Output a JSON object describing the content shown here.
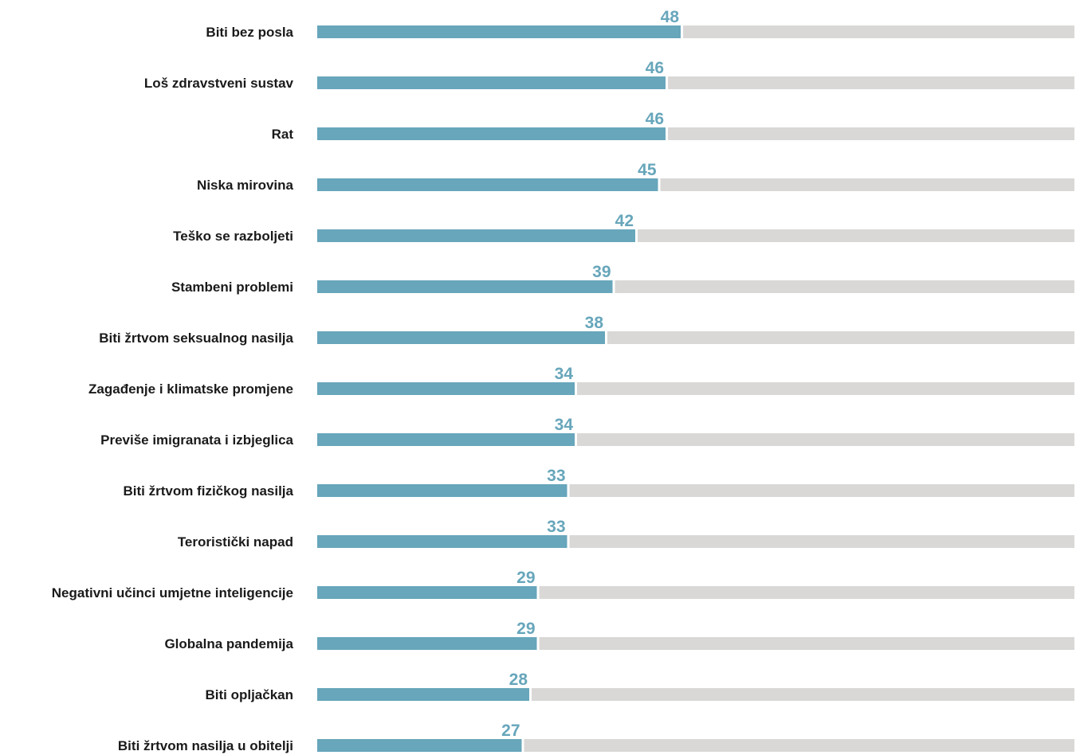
{
  "chart_data": {
    "type": "bar",
    "orientation": "horizontal",
    "stacked_to_total": 100,
    "categories": [
      "Biti bez posla",
      "Loš zdravstveni sustav",
      "Rat",
      "Niska mirovina",
      "Teško se razboljeti",
      "Stambeni problemi",
      "Biti žrtvom seksualnog nasilja",
      "Zagađenje i klimatske promjene",
      "Previše imigranata i izbjeglica",
      "Biti žrtvom fizičkog nasilja",
      "Teroristički napad",
      "Negativni učinci umjetne inteligencije",
      "Globalna pandemija",
      "Biti opljačkan",
      "Biti žrtvom nasilja u obitelji"
    ],
    "values": [
      48,
      46,
      46,
      45,
      42,
      39,
      38,
      34,
      34,
      33,
      33,
      29,
      29,
      28,
      27
    ],
    "xlim": [
      0,
      100
    ],
    "title": "",
    "xlabel": "",
    "ylabel": "",
    "grid": false,
    "legend": "none",
    "colors": {
      "bar": "#67a6bb",
      "remainder": "#d9d8d6",
      "value_label": "#67a6bb",
      "category_label": "#1a1a1a"
    }
  }
}
